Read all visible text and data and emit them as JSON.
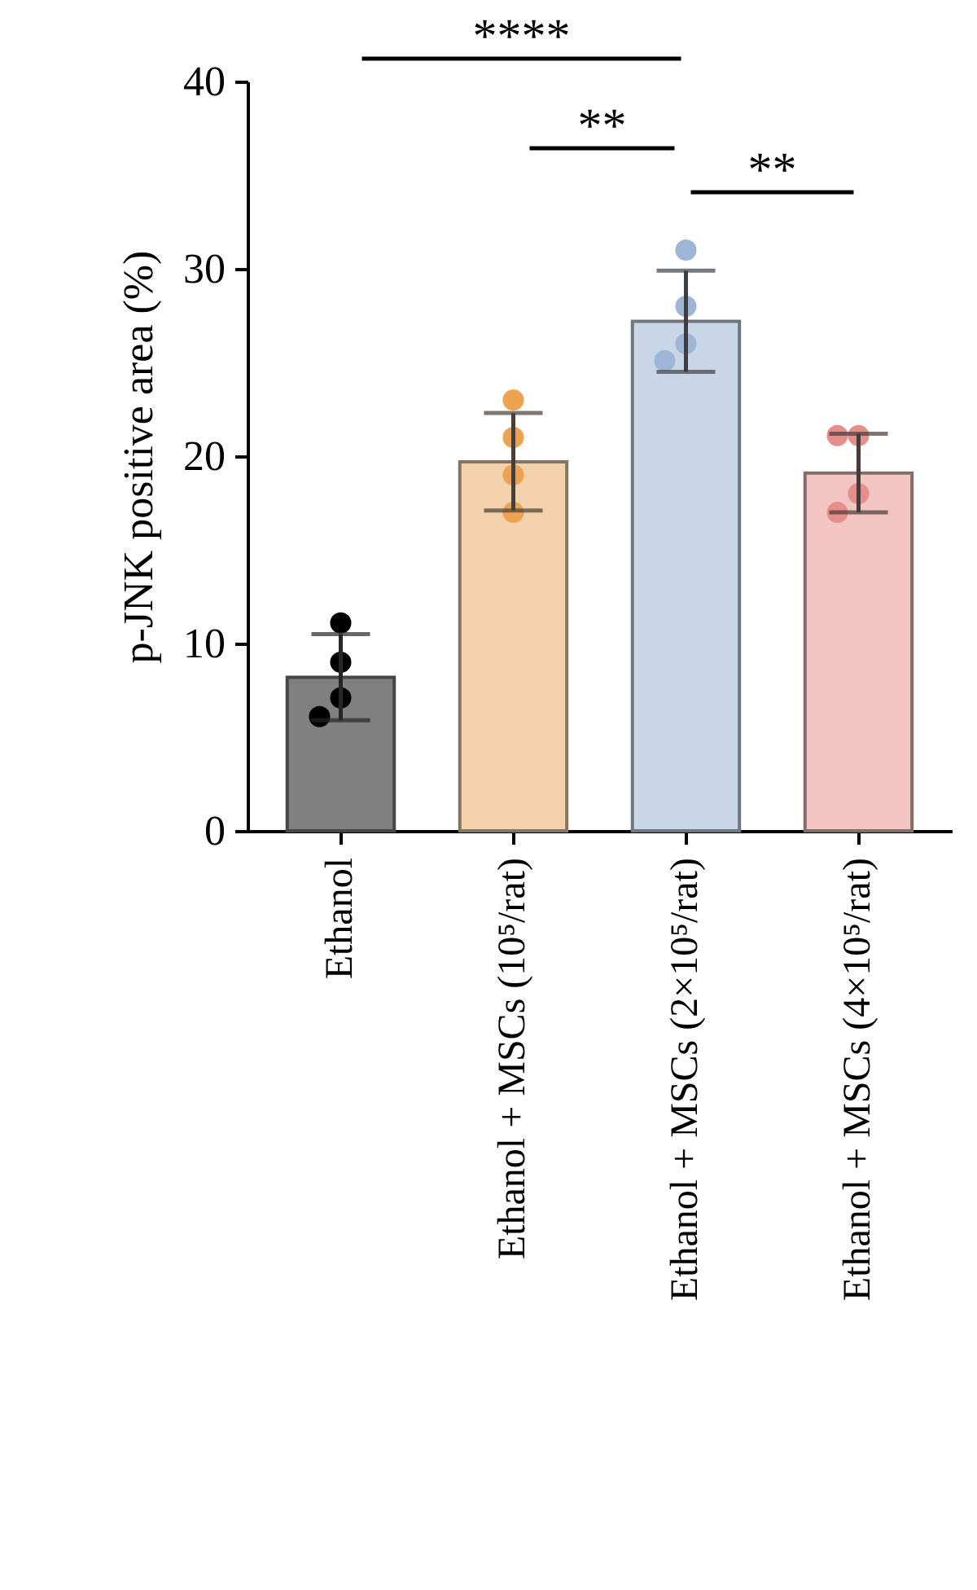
{
  "chart_data": {
    "type": "bar",
    "ylabel": "p-JNK positive area (%)",
    "categories": [
      "Ethanol",
      "Ethanol + MSCs (10⁵/rat)",
      "Ethanol + MSCs (2×10⁵/rat)",
      "Ethanol + MSCs (4×10⁵/rat)"
    ],
    "ylim": [
      0,
      40
    ],
    "yticks": [
      0,
      10,
      20,
      30,
      40
    ],
    "grid": false,
    "series": [
      {
        "colors": [
          "#808080",
          "#f3d2ab",
          "#c9d6e8",
          "#f2c4c2"
        ],
        "values": [
          8.2,
          19.7,
          27.2,
          19.1
        ],
        "errors": [
          2.3,
          2.6,
          2.7,
          2.1
        ]
      },
      {
        "type": "scatter",
        "marker": "circle",
        "colors": [
          "#000000",
          "#000000",
          "#000000",
          "#000000",
          "#eda352",
          "#eda352",
          "#eda352",
          "#eda352",
          "#9fb5d6",
          "#9fb5d6",
          "#9fb5d6",
          "#9fb5d6",
          "#e68e8a",
          "#e68e8a",
          "#e68e8a",
          "#e68e8a"
        ],
        "x": [
          "Ethanol",
          "Ethanol",
          "Ethanol",
          "Ethanol",
          "Ethanol + MSCs (10⁵/rat)",
          "Ethanol + MSCs (10⁵/rat)",
          "Ethanol + MSCs (10⁵/rat)",
          "Ethanol + MSCs (10⁵/rat)",
          "Ethanol + MSCs (2×10⁵/rat)",
          "Ethanol + MSCs (2×10⁵/rat)",
          "Ethanol + MSCs (2×10⁵/rat)",
          "Ethanol + MSCs (2×10⁵/rat)",
          "Ethanol + MSCs (4×10⁵/rat)",
          "Ethanol + MSCs (4×10⁵/rat)",
          "Ethanol + MSCs (4×10⁵/rat)",
          "Ethanol + MSCs (4×10⁵/rat)"
        ],
        "values": [
          11.1,
          9.0,
          7.1,
          6.1,
          23.0,
          21.0,
          19.0,
          17.0,
          31.0,
          28.0,
          26.0,
          25.1,
          21.1,
          21.1,
          18.0,
          17.0
        ]
      }
    ],
    "annotations": [
      "****",
      "**",
      "**"
    ]
  }
}
